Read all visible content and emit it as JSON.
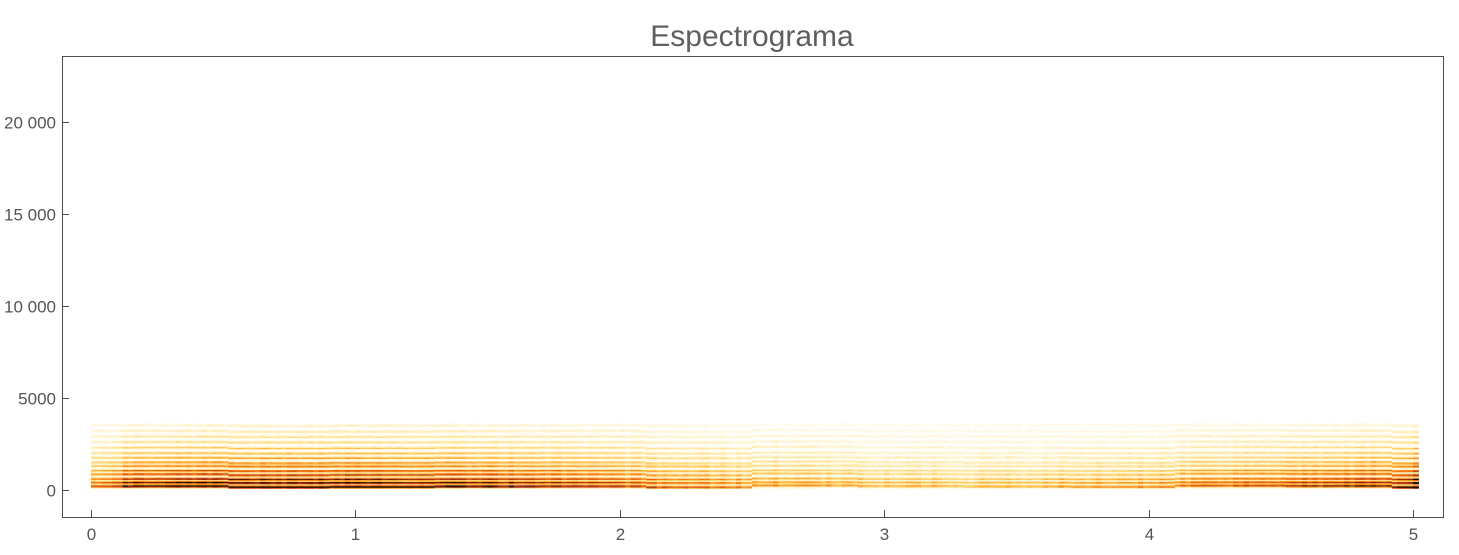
{
  "chart_data": {
    "type": "heatmap",
    "title": "Espectrograma",
    "xlabel": "",
    "ylabel": "",
    "x_ticks": [
      0,
      1,
      2,
      3,
      4,
      5
    ],
    "x_tick_labels": [
      "0",
      "1",
      "2",
      "3",
      "4",
      "5"
    ],
    "y_ticks": [
      0,
      5000,
      10000,
      15000,
      20000
    ],
    "y_tick_labels": [
      "0",
      "5000",
      "10 000",
      "15 000",
      "20 000"
    ],
    "xlim": [
      0,
      5
    ],
    "ylim": [
      0,
      22050
    ],
    "colormap": [
      "#ffffff",
      "#fff6d8",
      "#ffe08a",
      "#ffb43c",
      "#f57a17",
      "#d1450c",
      "#8c1d0a",
      "#000000"
    ],
    "grid": false,
    "legend": "none",
    "frequency_bands_hz": [
      200,
      400,
      600,
      850,
      1050,
      1300,
      1500,
      1750,
      2000,
      2300,
      2600,
      2900,
      3200,
      3500
    ],
    "band_peak_intensity": [
      0.95,
      0.85,
      0.78,
      0.7,
      0.62,
      0.55,
      0.5,
      0.45,
      0.4,
      0.35,
      0.3,
      0.26,
      0.22,
      0.18
    ],
    "max_visible_frequency_hz": 6000,
    "time_segments_s": [
      0,
      0.15,
      0.52,
      0.9,
      1.3,
      1.7,
      2.1,
      2.5,
      2.9,
      3.3,
      3.7,
      4.1,
      4.5,
      4.9,
      5.0
    ]
  }
}
